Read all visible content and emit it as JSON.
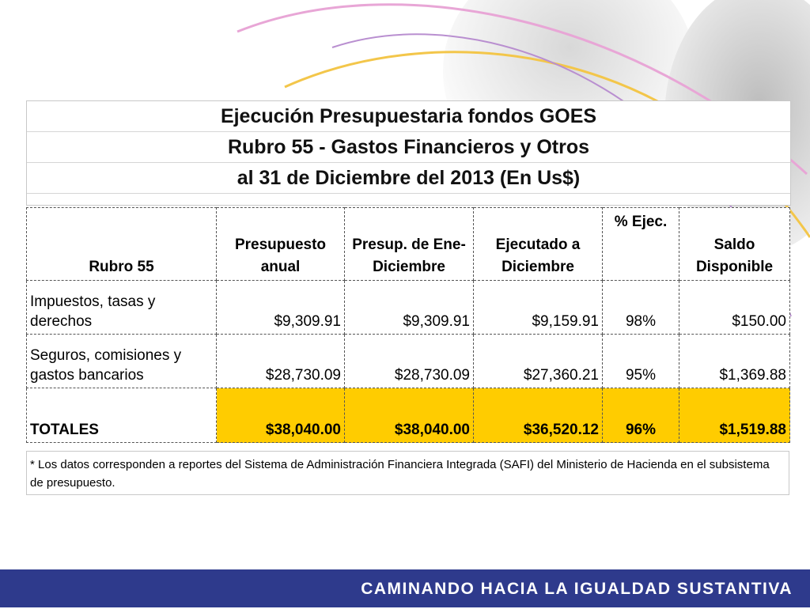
{
  "title": {
    "line1": "Ejecución Presupuestaria fondos GOES",
    "line2": "Rubro 55 - Gastos Financieros y Otros",
    "line3": "al 31 de Diciembre  del 2013 (En Us$)"
  },
  "table": {
    "headers": {
      "rubro": "Rubro 55",
      "anual": "Presupuesto anual",
      "ene_dic": "Presup. de Ene-Diciembre",
      "ejecutado": "Ejecutado a Diciembre",
      "pct": "% Ejec.",
      "saldo": "Saldo Disponible"
    },
    "rows": [
      {
        "rubro": "Impuestos, tasas y derechos",
        "anual": "$9,309.91",
        "ene_dic": "$9,309.91",
        "ejecutado": "$9,159.91",
        "pct": "98%",
        "saldo": "$150.00"
      },
      {
        "rubro": "Seguros, comisiones y gastos bancarios",
        "anual": "$28,730.09",
        "ene_dic": "$28,730.09",
        "ejecutado": "$27,360.21",
        "pct": "95%",
        "saldo": "$1,369.88"
      }
    ],
    "totals": {
      "rubro": "TOTALES",
      "anual": "$38,040.00",
      "ene_dic": "$38,040.00",
      "ejecutado": "$36,520.12",
      "pct": "96%",
      "saldo": "$1,519.88"
    }
  },
  "note": "*  Los datos corresponden a reportes del Sistema de Administración Financiera Integrada (SAFI) del Ministerio de Hacienda en el subsistema de presupuesto.",
  "footer": {
    "slogan": "CAMINANDO HACIA LA IGUALDAD SUSTANTIVA"
  },
  "colors": {
    "totals_highlight": "#ffcc00",
    "footer_bar": "#2e3a8c"
  }
}
